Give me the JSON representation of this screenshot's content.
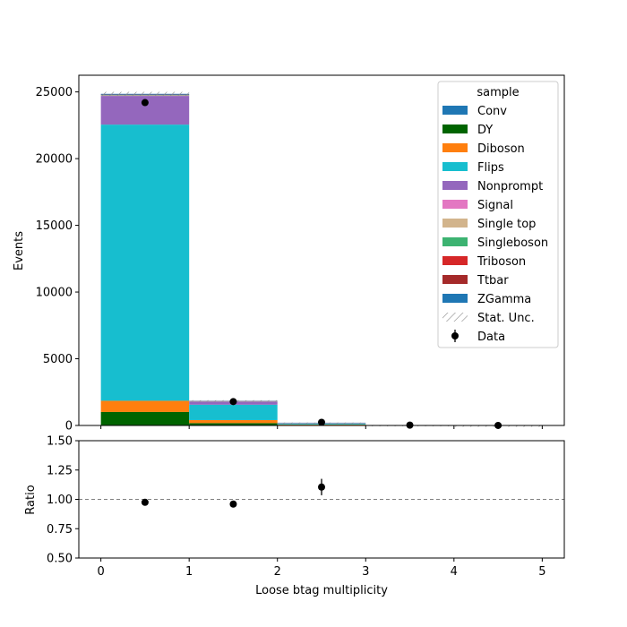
{
  "chart_data": [
    {
      "type": "bar",
      "stacked": true,
      "categories": [
        "0",
        "1",
        "2",
        "3",
        "4"
      ],
      "bin_edges": [
        0,
        1,
        2,
        3,
        4,
        5
      ],
      "ylabel": "Events",
      "ylim": [
        0,
        26250
      ],
      "xlim": [
        -0.25,
        5.25
      ],
      "yticks": [
        0,
        5000,
        10000,
        15000,
        20000,
        25000
      ],
      "ytick_labels": [
        "0",
        "5000",
        "10000",
        "15000",
        "20000",
        "25000"
      ],
      "legend": {
        "title": "sample",
        "placement": "top-right"
      },
      "series": [
        {
          "name": "Conv",
          "color": "#1f77b4",
          "values": [
            10,
            5,
            1,
            0,
            0
          ]
        },
        {
          "name": "DY",
          "color": "#006400",
          "values": [
            1000,
            170,
            45,
            3,
            0
          ]
        },
        {
          "name": "Diboson",
          "color": "#ff7f0e",
          "values": [
            840,
            230,
            30,
            5,
            1
          ]
        },
        {
          "name": "Flips",
          "color": "#17becf",
          "values": [
            20700,
            1150,
            80,
            18,
            2
          ]
        },
        {
          "name": "Nonprompt",
          "color": "#9467bd",
          "values": [
            2150,
            230,
            30,
            4,
            0
          ]
        },
        {
          "name": "Signal",
          "color": "#e377c2",
          "values": [
            20,
            8,
            1,
            0,
            0
          ]
        },
        {
          "name": "Single top",
          "color": "#d2b48c",
          "values": [
            10,
            5,
            2,
            0,
            0
          ]
        },
        {
          "name": "Singleboson",
          "color": "#3cb371",
          "values": [
            30,
            10,
            2,
            0,
            0
          ]
        },
        {
          "name": "Triboson",
          "color": "#d62728",
          "values": [
            5,
            2,
            1,
            0,
            0
          ]
        },
        {
          "name": "Ttbar",
          "color": "#a52a2a",
          "values": [
            30,
            20,
            10,
            2,
            0
          ]
        },
        {
          "name": "ZGamma",
          "color": "#1f77b4",
          "values": [
            60,
            20,
            5,
            0,
            0
          ]
        }
      ],
      "stat_unc": {
        "name": "Stat. Unc.",
        "halfwidth": [
          150,
          45,
          12,
          4,
          1
        ]
      },
      "data": {
        "name": "Data",
        "x": [
          0.5,
          1.5,
          2.5,
          3.5,
          4.5
        ],
        "y": [
          24200,
          1790,
          235,
          25,
          3
        ],
        "yerr": [
          156,
          42,
          15,
          5,
          2
        ]
      }
    },
    {
      "type": "scatter",
      "xlabel": "Loose btag multiplicity",
      "ylabel": "Ratio",
      "ylim": [
        0.5,
        1.5
      ],
      "xlim": [
        -0.25,
        5.25
      ],
      "yticks": [
        0.5,
        0.75,
        1.0,
        1.25,
        1.5
      ],
      "ytick_labels": [
        "0.50",
        "0.75",
        "1.00",
        "1.25",
        "1.50"
      ],
      "xticks": [
        0,
        1,
        2,
        3,
        4,
        5
      ],
      "xtick_labels": [
        "0",
        "1",
        "2",
        "3",
        "4",
        "5"
      ],
      "reference_line": 1.0,
      "x": [
        0.5,
        1.5,
        2.5
      ],
      "y": [
        0.975,
        0.96,
        1.105
      ],
      "yerr": [
        0.008,
        0.025,
        0.07
      ]
    }
  ]
}
